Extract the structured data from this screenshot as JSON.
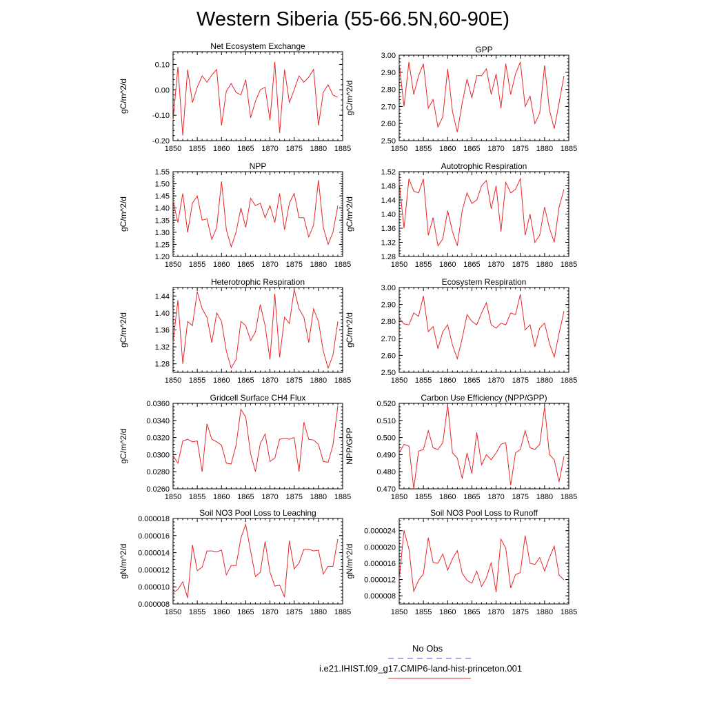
{
  "title": "Western Siberia (55-66.5N,60-90E)",
  "legend": {
    "items": [
      {
        "label": "No Obs",
        "color": "#5555dd",
        "style": "dashed"
      },
      {
        "label": "i.e21.IHIST.f09_g17.CMIP6-land-hist-princeton.001",
        "color": "#e8262a",
        "style": "solid"
      }
    ]
  },
  "colors": {
    "series": "#e8262a",
    "axis": "#000000"
  },
  "chart_data": [
    {
      "type": "line",
      "title": "Net Ecosystem Exchange",
      "ylabel": "gC/m^2/d",
      "xlim": [
        1850,
        1885
      ],
      "ylim": [
        -0.2,
        0.15
      ],
      "yticks": [
        -0.2,
        -0.1,
        0.0,
        0.1
      ],
      "ytick_labels": [
        "-0.20",
        "-0.10",
        "0.00",
        "0.10"
      ],
      "xticks": [
        1850,
        1855,
        1860,
        1865,
        1870,
        1875,
        1880,
        1885
      ],
      "xtick_labels": [
        "1850",
        "1855",
        "1860",
        "1865",
        "1870",
        "1875",
        "1880",
        "1885"
      ],
      "x": [
        1850,
        1851,
        1852,
        1853,
        1854,
        1855,
        1856,
        1857,
        1858,
        1859,
        1860,
        1861,
        1862,
        1863,
        1864,
        1865,
        1866,
        1867,
        1868,
        1869,
        1870,
        1871,
        1872,
        1873,
        1874,
        1875,
        1876,
        1877,
        1878,
        1879,
        1880,
        1881,
        1882,
        1883,
        1884
      ],
      "values": [
        -0.12,
        0.09,
        -0.18,
        0.08,
        -0.05,
        0.01,
        0.055,
        0.03,
        0.058,
        0.08,
        -0.14,
        -0.005,
        0.025,
        -0.01,
        -0.02,
        0.04,
        -0.11,
        -0.045,
        0.0,
        0.01,
        -0.12,
        0.11,
        -0.17,
        0.08,
        -0.05,
        0.0,
        0.055,
        0.03,
        0.05,
        0.08,
        -0.14,
        -0.01,
        0.02,
        -0.02,
        -0.03
      ]
    },
    {
      "type": "line",
      "title": "GPP",
      "ylabel": "gC/m^2/d",
      "xlim": [
        1850,
        1885
      ],
      "ylim": [
        2.5,
        3.0
      ],
      "yticks": [
        2.5,
        2.6,
        2.7,
        2.8,
        2.9,
        3.0
      ],
      "ytick_labels": [
        "2.50",
        "2.60",
        "2.70",
        "2.80",
        "2.90",
        "3.00"
      ],
      "xticks": [
        1850,
        1855,
        1860,
        1865,
        1870,
        1875,
        1880,
        1885
      ],
      "xtick_labels": [
        "1850",
        "1855",
        "1860",
        "1865",
        "1870",
        "1875",
        "1880",
        "1885"
      ],
      "x": [
        1850,
        1851,
        1852,
        1853,
        1854,
        1855,
        1856,
        1857,
        1858,
        1859,
        1860,
        1861,
        1862,
        1863,
        1864,
        1865,
        1866,
        1867,
        1868,
        1869,
        1870,
        1871,
        1872,
        1873,
        1874,
        1875,
        1876,
        1877,
        1878,
        1879,
        1880,
        1881,
        1882,
        1883,
        1884
      ],
      "values": [
        2.95,
        2.7,
        2.96,
        2.77,
        2.88,
        2.95,
        2.69,
        2.74,
        2.58,
        2.64,
        2.92,
        2.67,
        2.55,
        2.72,
        2.86,
        2.75,
        2.88,
        2.88,
        2.92,
        2.77,
        2.89,
        2.69,
        2.95,
        2.77,
        2.89,
        2.96,
        2.7,
        2.76,
        2.6,
        2.66,
        2.94,
        2.68,
        2.57,
        2.72,
        2.88
      ]
    },
    {
      "type": "line",
      "title": "NPP",
      "ylabel": "gC/m^2/d",
      "xlim": [
        1850,
        1885
      ],
      "ylim": [
        1.2,
        1.55
      ],
      "yticks": [
        1.2,
        1.25,
        1.3,
        1.35,
        1.4,
        1.45,
        1.5,
        1.55
      ],
      "ytick_labels": [
        "1.20",
        "1.25",
        "1.30",
        "1.35",
        "1.40",
        "1.45",
        "1.50",
        "1.55"
      ],
      "xticks": [
        1850,
        1855,
        1860,
        1865,
        1870,
        1875,
        1880,
        1885
      ],
      "xtick_labels": [
        "1850",
        "1855",
        "1860",
        "1865",
        "1870",
        "1875",
        "1880",
        "1885"
      ],
      "x": [
        1850,
        1851,
        1852,
        1853,
        1854,
        1855,
        1856,
        1857,
        1858,
        1859,
        1860,
        1861,
        1862,
        1863,
        1864,
        1865,
        1866,
        1867,
        1868,
        1869,
        1870,
        1871,
        1872,
        1873,
        1874,
        1875,
        1876,
        1877,
        1878,
        1879,
        1880,
        1881,
        1882,
        1883,
        1884
      ],
      "values": [
        1.43,
        1.34,
        1.46,
        1.3,
        1.42,
        1.45,
        1.35,
        1.355,
        1.27,
        1.32,
        1.51,
        1.31,
        1.24,
        1.3,
        1.4,
        1.32,
        1.44,
        1.41,
        1.42,
        1.36,
        1.41,
        1.34,
        1.46,
        1.31,
        1.42,
        1.46,
        1.36,
        1.36,
        1.28,
        1.33,
        1.515,
        1.32,
        1.25,
        1.3,
        1.41
      ]
    },
    {
      "type": "line",
      "title": "Autotrophic Respiration",
      "ylabel": "gC/m^2/d",
      "xlim": [
        1850,
        1885
      ],
      "ylim": [
        1.28,
        1.52
      ],
      "yticks": [
        1.28,
        1.32,
        1.36,
        1.4,
        1.44,
        1.48,
        1.52
      ],
      "ytick_labels": [
        "1.28",
        "1.32",
        "1.36",
        "1.40",
        "1.44",
        "1.48",
        "1.52"
      ],
      "xticks": [
        1850,
        1855,
        1860,
        1865,
        1870,
        1875,
        1880,
        1885
      ],
      "xtick_labels": [
        "1850",
        "1855",
        "1860",
        "1865",
        "1870",
        "1875",
        "1880",
        "1885"
      ],
      "x": [
        1850,
        1851,
        1852,
        1853,
        1854,
        1855,
        1856,
        1857,
        1858,
        1859,
        1860,
        1861,
        1862,
        1863,
        1864,
        1865,
        1866,
        1867,
        1868,
        1869,
        1870,
        1871,
        1872,
        1873,
        1874,
        1875,
        1876,
        1877,
        1878,
        1879,
        1880,
        1881,
        1882,
        1883,
        1884
      ],
      "values": [
        1.49,
        1.36,
        1.5,
        1.465,
        1.46,
        1.5,
        1.34,
        1.39,
        1.31,
        1.33,
        1.41,
        1.35,
        1.31,
        1.41,
        1.46,
        1.43,
        1.44,
        1.48,
        1.495,
        1.415,
        1.48,
        1.35,
        1.49,
        1.46,
        1.47,
        1.5,
        1.34,
        1.4,
        1.32,
        1.34,
        1.42,
        1.36,
        1.32,
        1.42,
        1.47
      ]
    },
    {
      "type": "line",
      "title": "Heterotrophic Respiration",
      "ylabel": "gC/m^2/d",
      "xlim": [
        1850,
        1885
      ],
      "ylim": [
        1.26,
        1.46
      ],
      "yticks": [
        1.28,
        1.32,
        1.36,
        1.4,
        1.44
      ],
      "ytick_labels": [
        "1.28",
        "1.32",
        "1.36",
        "1.40",
        "1.44"
      ],
      "xticks": [
        1850,
        1855,
        1860,
        1865,
        1870,
        1875,
        1880,
        1885
      ],
      "xtick_labels": [
        "1850",
        "1855",
        "1860",
        "1865",
        "1870",
        "1875",
        "1880",
        "1885"
      ],
      "x": [
        1850,
        1851,
        1852,
        1853,
        1854,
        1855,
        1856,
        1857,
        1858,
        1859,
        1860,
        1861,
        1862,
        1863,
        1864,
        1865,
        1866,
        1867,
        1868,
        1869,
        1870,
        1871,
        1872,
        1873,
        1874,
        1875,
        1876,
        1877,
        1878,
        1879,
        1880,
        1881,
        1882,
        1883,
        1884
      ],
      "values": [
        1.33,
        1.43,
        1.28,
        1.38,
        1.37,
        1.45,
        1.41,
        1.39,
        1.33,
        1.4,
        1.38,
        1.31,
        1.27,
        1.29,
        1.38,
        1.37,
        1.335,
        1.355,
        1.42,
        1.37,
        1.29,
        1.445,
        1.295,
        1.39,
        1.375,
        1.455,
        1.41,
        1.39,
        1.33,
        1.41,
        1.38,
        1.31,
        1.27,
        1.3,
        1.38
      ]
    },
    {
      "type": "line",
      "title": "Ecosystem Respiration",
      "ylabel": "gC/m^2/d",
      "xlim": [
        1850,
        1885
      ],
      "ylim": [
        2.5,
        3.0
      ],
      "yticks": [
        2.5,
        2.6,
        2.7,
        2.8,
        2.9,
        3.0
      ],
      "ytick_labels": [
        "2.50",
        "2.60",
        "2.70",
        "2.80",
        "2.90",
        "3.00"
      ],
      "xticks": [
        1850,
        1855,
        1860,
        1865,
        1870,
        1875,
        1880,
        1885
      ],
      "xtick_labels": [
        "1850",
        "1855",
        "1860",
        "1865",
        "1870",
        "1875",
        "1880",
        "1885"
      ],
      "x": [
        1850,
        1851,
        1852,
        1853,
        1854,
        1855,
        1856,
        1857,
        1858,
        1859,
        1860,
        1861,
        1862,
        1863,
        1864,
        1865,
        1866,
        1867,
        1868,
        1869,
        1870,
        1871,
        1872,
        1873,
        1874,
        1875,
        1876,
        1877,
        1878,
        1879,
        1880,
        1881,
        1882,
        1883,
        1884
      ],
      "values": [
        2.82,
        2.785,
        2.78,
        2.85,
        2.83,
        2.95,
        2.74,
        2.77,
        2.64,
        2.74,
        2.78,
        2.66,
        2.58,
        2.7,
        2.84,
        2.8,
        2.78,
        2.85,
        2.91,
        2.78,
        2.76,
        2.79,
        2.78,
        2.85,
        2.84,
        2.96,
        2.75,
        2.78,
        2.65,
        2.76,
        2.79,
        2.67,
        2.59,
        2.73,
        2.86
      ]
    },
    {
      "type": "line",
      "title": "Gridcell Surface CH4 Flux",
      "ylabel": "gC/m^2/d",
      "xlim": [
        1850,
        1885
      ],
      "ylim": [
        0.026,
        0.036
      ],
      "yticks": [
        0.026,
        0.028,
        0.03,
        0.032,
        0.034,
        0.036
      ],
      "ytick_labels": [
        "0.0260",
        "0.0280",
        "0.0300",
        "0.0320",
        "0.0340",
        "0.0360"
      ],
      "xticks": [
        1850,
        1855,
        1860,
        1865,
        1870,
        1875,
        1880,
        1885
      ],
      "xtick_labels": [
        "1850",
        "1855",
        "1860",
        "1865",
        "1870",
        "1875",
        "1880",
        "1885"
      ],
      "x": [
        1850,
        1851,
        1852,
        1853,
        1854,
        1855,
        1856,
        1857,
        1858,
        1859,
        1860,
        1861,
        1862,
        1863,
        1864,
        1865,
        1866,
        1867,
        1868,
        1869,
        1870,
        1871,
        1872,
        1873,
        1874,
        1875,
        1876,
        1877,
        1878,
        1879,
        1880,
        1881,
        1882,
        1883,
        1884
      ],
      "values": [
        0.0299,
        0.029,
        0.0316,
        0.0318,
        0.0315,
        0.0316,
        0.028,
        0.0336,
        0.0318,
        0.0315,
        0.0311,
        0.029,
        0.0289,
        0.0311,
        0.0353,
        0.0344,
        0.0301,
        0.028,
        0.0313,
        0.0324,
        0.0292,
        0.0296,
        0.0318,
        0.0319,
        0.0318,
        0.032,
        0.028,
        0.0338,
        0.0318,
        0.0317,
        0.0312,
        0.0292,
        0.0291,
        0.0311,
        0.0357
      ]
    },
    {
      "type": "line",
      "title": "Carbon Use Efficiency (NPP/GPP)",
      "ylabel": "NPP/GPP",
      "xlim": [
        1850,
        1885
      ],
      "ylim": [
        0.47,
        0.52
      ],
      "yticks": [
        0.47,
        0.48,
        0.49,
        0.5,
        0.51,
        0.52
      ],
      "ytick_labels": [
        "0.470",
        "0.480",
        "0.490",
        "0.500",
        "0.510",
        "0.520"
      ],
      "xticks": [
        1850,
        1855,
        1860,
        1865,
        1870,
        1875,
        1880,
        1885
      ],
      "xtick_labels": [
        "1850",
        "1855",
        "1860",
        "1865",
        "1870",
        "1875",
        "1880",
        "1885"
      ],
      "x": [
        1850,
        1851,
        1852,
        1853,
        1854,
        1855,
        1856,
        1857,
        1858,
        1859,
        1860,
        1861,
        1862,
        1863,
        1864,
        1865,
        1866,
        1867,
        1868,
        1869,
        1870,
        1871,
        1872,
        1873,
        1874,
        1875,
        1876,
        1877,
        1878,
        1879,
        1880,
        1881,
        1882,
        1883,
        1884
      ],
      "values": [
        0.491,
        0.496,
        0.495,
        0.47,
        0.492,
        0.493,
        0.504,
        0.494,
        0.493,
        0.497,
        0.519,
        0.491,
        0.488,
        0.476,
        0.491,
        0.479,
        0.503,
        0.484,
        0.49,
        0.487,
        0.491,
        0.496,
        0.497,
        0.472,
        0.491,
        0.493,
        0.504,
        0.494,
        0.493,
        0.496,
        0.518,
        0.49,
        0.487,
        0.474,
        0.489
      ]
    },
    {
      "type": "line",
      "title": "Soil NO3 Pool Loss to Leaching",
      "ylabel": "gN/m^2/d",
      "xlim": [
        1850,
        1885
      ],
      "ylim": [
        8e-06,
        1.8e-05
      ],
      "yticks": [
        8e-06,
        1e-05,
        1.2e-05,
        1.4e-05,
        1.6e-05,
        1.8e-05
      ],
      "ytick_labels": [
        "0.000008",
        "0.000010",
        "0.000012",
        "0.000014",
        "0.000016",
        "0.000018"
      ],
      "xticks": [
        1850,
        1855,
        1860,
        1865,
        1870,
        1875,
        1880,
        1885
      ],
      "xtick_labels": [
        "1850",
        "1855",
        "1860",
        "1865",
        "1870",
        "1875",
        "1880",
        "1885"
      ],
      "x": [
        1850,
        1851,
        1852,
        1853,
        1854,
        1855,
        1856,
        1857,
        1858,
        1859,
        1860,
        1861,
        1862,
        1863,
        1864,
        1865,
        1866,
        1867,
        1868,
        1869,
        1870,
        1871,
        1872,
        1873,
        1874,
        1875,
        1876,
        1877,
        1878,
        1879,
        1880,
        1881,
        1882,
        1883,
        1884
      ],
      "values": [
        9.3e-06,
        9.7e-06,
        1.06e-05,
        8.7e-06,
        1.49e-05,
        1.19e-05,
        1.23e-05,
        1.42e-05,
        1.42e-05,
        1.41e-05,
        1.43e-05,
        1.14e-05,
        1.25e-05,
        1.25e-05,
        1.57e-05,
        1.73e-05,
        1.42e-05,
        1.12e-05,
        1.17e-05,
        1.53e-05,
        1.17e-05,
        1.01e-05,
        1.02e-05,
        8.8e-06,
        1.54e-05,
        1.21e-05,
        1.28e-05,
        1.44e-05,
        1.44e-05,
        1.42e-05,
        1.43e-05,
        1.15e-05,
        1.24e-05,
        1.24e-05,
        1.56e-05
      ]
    },
    {
      "type": "line",
      "title": "Soil NO3 Pool Loss to Runoff",
      "ylabel": "gN/m^2/d",
      "xlim": [
        1850,
        1885
      ],
      "ylim": [
        6e-06,
        2.7e-05
      ],
      "yticks": [
        8e-06,
        1.2e-05,
        1.6e-05,
        2e-05,
        2.4e-05
      ],
      "ytick_labels": [
        "0.000008",
        "0.000012",
        "0.000016",
        "0.000020",
        "0.000024"
      ],
      "xticks": [
        1850,
        1855,
        1860,
        1865,
        1870,
        1875,
        1880,
        1885
      ],
      "xtick_labels": [
        "1850",
        "1855",
        "1860",
        "1865",
        "1870",
        "1875",
        "1880",
        "1885"
      ],
      "x": [
        1850,
        1851,
        1852,
        1853,
        1854,
        1855,
        1856,
        1857,
        1858,
        1859,
        1860,
        1861,
        1862,
        1863,
        1864,
        1865,
        1866,
        1867,
        1868,
        1869,
        1870,
        1871,
        1872,
        1873,
        1874,
        1875,
        1876,
        1877,
        1878,
        1879,
        1880,
        1881,
        1882,
        1883,
        1884
      ],
      "values": [
        1.2e-05,
        2.41e-05,
        1.95e-05,
        9.1e-06,
        1.18e-05,
        1.34e-05,
        2.23e-05,
        1.62e-05,
        1.6e-05,
        1.83e-05,
        1.43e-05,
        1.71e-05,
        1.91e-05,
        1.35e-05,
        1.18e-05,
        1.11e-05,
        1.41e-05,
        1.03e-05,
        1.24e-05,
        1.62e-05,
        8.9e-06,
        2.19e-05,
        1.97e-05,
        9.9e-06,
        1.32e-05,
        1.37e-05,
        2.28e-05,
        1.6e-05,
        1.57e-05,
        1.74e-05,
        1.41e-05,
        1.74e-05,
        2.02e-05,
        1.31e-05,
        1.19e-05
      ]
    }
  ]
}
